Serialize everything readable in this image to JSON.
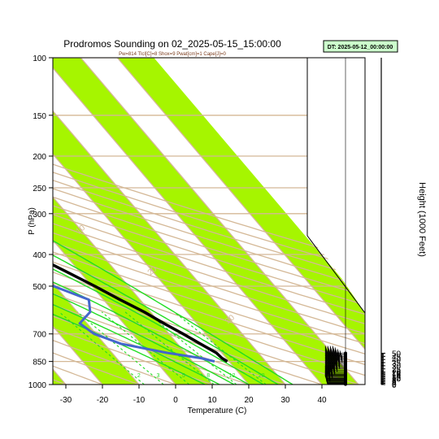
{
  "chart_data": {
    "type": "line",
    "title": "Prodromos Sounding on 02_2025-05-15_15:00:00",
    "subtitle": "Pw=814 Tlcl[C]=8 Shox=9 Pwat[cm]=1 Cape[J]=0",
    "dt_label": "DT: 2025-05-12_00:00:00",
    "xlabel": "Temperature (C)",
    "ylabel": "P (hPa)",
    "ylabel_right": "Height (1000 Feet)",
    "xlim": [
      -33,
      50
    ],
    "ylim": [
      1000,
      100
    ],
    "x_ticks": [
      "-30",
      "-20",
      "-10",
      "0",
      "10",
      "20",
      "30",
      "40"
    ],
    "p_ticks": [
      "100",
      "150",
      "200",
      "250",
      "300",
      "400",
      "500",
      "700",
      "850",
      "1000"
    ],
    "height_ticks": [
      "0",
      "2",
      "4",
      "6",
      "8",
      "10",
      "12",
      "14",
      "16",
      "18",
      "20",
      "25",
      "30",
      "35",
      "40",
      "45",
      "50"
    ],
    "theta_labels": [
      "-30",
      "-20",
      "-10",
      "0",
      "10",
      "20",
      "30"
    ],
    "theta_label_values": [
      -30,
      -20,
      -10,
      0,
      10,
      20,
      30
    ],
    "theta_label_pressures": [
      103,
      145,
      195,
      260,
      340,
      455,
      640
    ],
    "mixing_ratio_labels": [
      "2",
      "3",
      "5",
      "8",
      "12",
      "20"
    ],
    "mixing_ratio_values": [
      2,
      3,
      5,
      8,
      12,
      20
    ],
    "moist_adiabat_labels": [
      "8",
      "12",
      "16",
      "20",
      "24",
      "28",
      "32"
    ],
    "moist_adiabat_values": [
      8,
      12,
      16,
      20,
      24,
      28,
      32
    ],
    "colors": {
      "band": "#a6f500",
      "isotherm": "#d4b896",
      "dry_adiabat": "#d4b896",
      "moist_adiabat": "#22dd22",
      "mixing_ratio": "#22dd22",
      "temperature": "#000000",
      "dewpoint": "#4466cc",
      "dt_box": "#ccffcc"
    },
    "series": [
      {
        "name": "Temperature",
        "pressure": [
          850,
          830,
          800,
          750,
          700,
          650,
          600,
          550,
          500,
          450,
          400,
          350,
          300,
          270,
          250,
          230,
          200,
          180,
          160,
          150,
          140,
          130,
          120,
          110,
          100
        ],
        "temperature": [
          19.5,
          18.8,
          18.5,
          16.2,
          13.8,
          11.0,
          8.3,
          4.5,
          0.8,
          -3.8,
          -9.0,
          -15.5,
          -22.5,
          -27.3,
          -32.0,
          -36.5,
          -44.0,
          -48.0,
          -51.5,
          -52.3,
          -53.0,
          -52.5,
          -51.5,
          -49.5,
          -47.5
        ]
      },
      {
        "name": "Dewpoint",
        "pressure": [
          850,
          830,
          800,
          750,
          700,
          650,
          600,
          550,
          500,
          450,
          420,
          400,
          350,
          300,
          270,
          250,
          230,
          200,
          180,
          160,
          150,
          140,
          130,
          120,
          110,
          100
        ],
        "temperature": [
          16.0,
          13.0,
          5.0,
          -5.5,
          -10.5,
          -12.0,
          -6.5,
          -4.0,
          -10.5,
          -13.5,
          -13.2,
          -16.5,
          -18.0,
          -28.0,
          -32.5,
          -41.5,
          -48.5,
          -56.5,
          -57.0,
          -57.5,
          -57.0,
          -56.0,
          -55.5,
          -55.0,
          -54.0,
          -52.5
        ]
      }
    ],
    "wind_barbs": {
      "heights_kft": [
        0.5,
        1.0,
        1.5,
        2.5,
        3.5,
        4.5,
        5.5,
        6.5,
        7.5,
        8.5,
        9.5,
        10.5,
        12.0,
        13.5,
        15.0,
        16.5,
        18.0,
        20.0,
        22.5,
        25.0,
        27.5,
        30.0,
        32.5,
        35.0,
        37.5,
        40.0,
        42.5,
        45.0,
        47.5,
        50.0
      ],
      "speeds_kt": [
        5,
        5,
        5,
        10,
        10,
        15,
        15,
        15,
        20,
        20,
        25,
        25,
        30,
        30,
        35,
        40,
        40,
        45,
        50,
        55,
        55,
        60,
        60,
        65,
        70,
        70,
        70,
        60,
        50,
        40
      ]
    }
  }
}
